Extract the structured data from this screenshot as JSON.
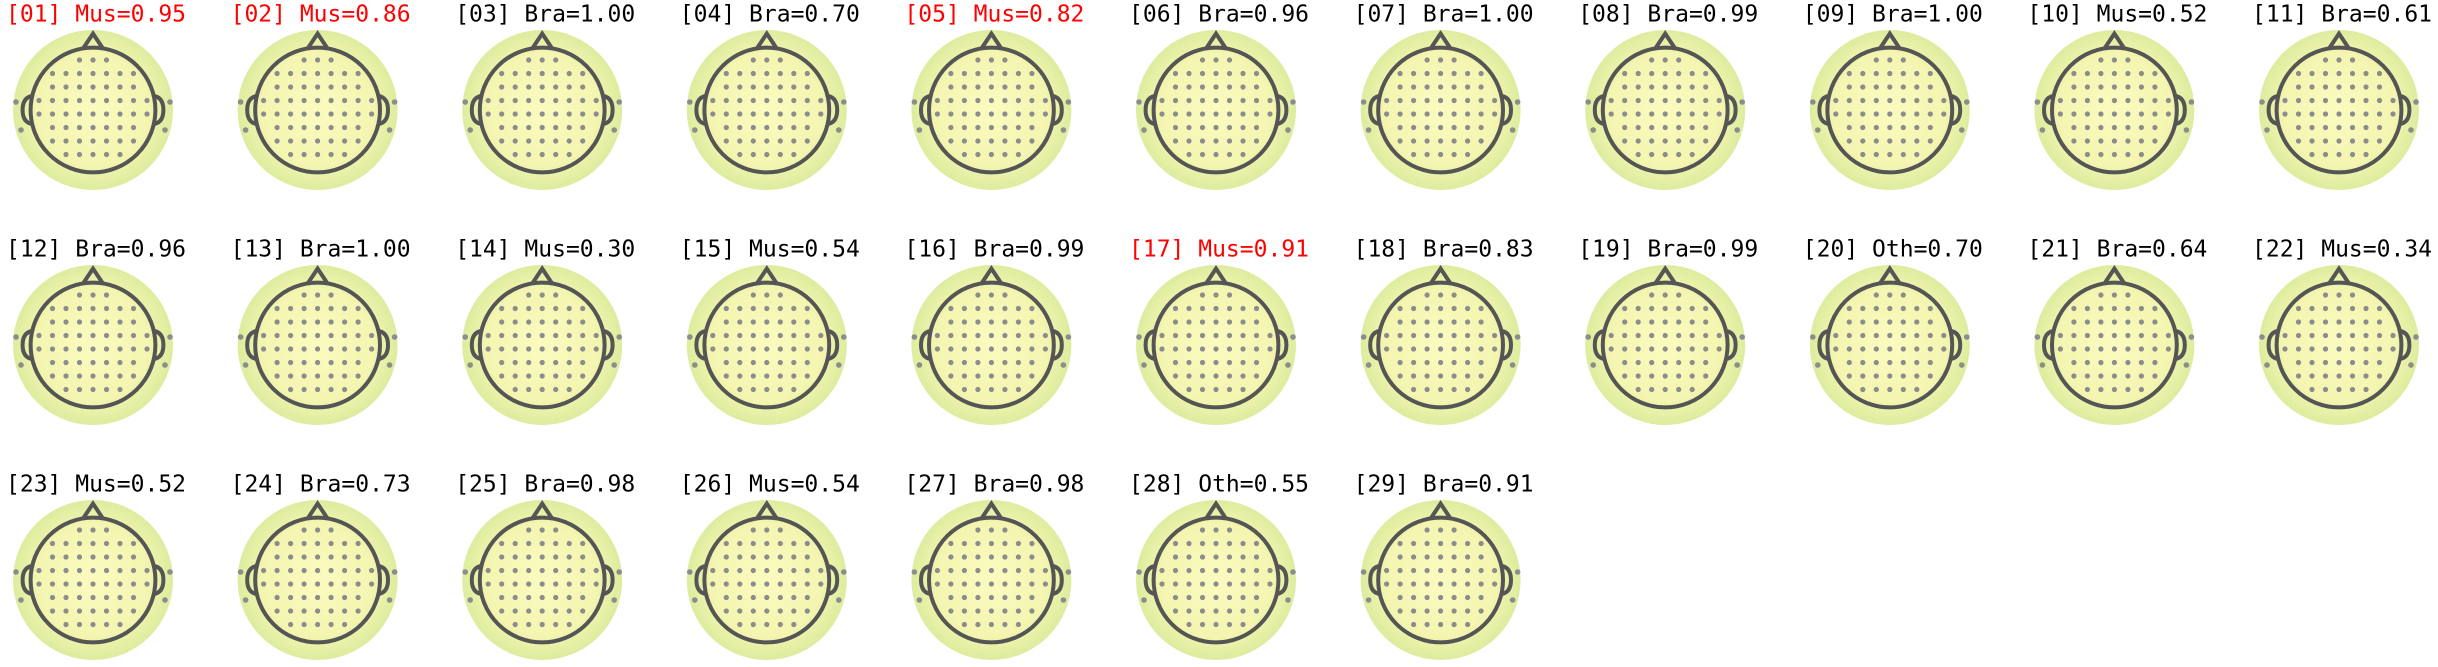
{
  "panels": [
    {
      "title": "[01] Mus=0.95",
      "color": "#ff0000"
    },
    {
      "title": "[02] Mus=0.86",
      "color": "#ff0000"
    },
    {
      "title": "[03] Bra=1.00",
      "color": "#000000"
    },
    {
      "title": "[04] Bra=0.70",
      "color": "#000000"
    },
    {
      "title": "[05] Mus=0.82",
      "color": "#ff0000"
    },
    {
      "title": "[06] Bra=0.96",
      "color": "#000000"
    },
    {
      "title": "[07] Bra=1.00",
      "color": "#000000"
    },
    {
      "title": "[08] Bra=0.99",
      "color": "#000000"
    },
    {
      "title": "[09] Bra=1.00",
      "color": "#000000"
    },
    {
      "title": "[10] Mus=0.52",
      "color": "#000000"
    },
    {
      "title": "[11] Bra=0.61",
      "color": "#000000"
    },
    {
      "title": "[12] Bra=0.96",
      "color": "#000000"
    },
    {
      "title": "[13] Bra=1.00",
      "color": "#000000"
    },
    {
      "title": "[14] Mus=0.30",
      "color": "#000000"
    },
    {
      "title": "[15] Mus=0.54",
      "color": "#000000"
    },
    {
      "title": "[16] Bra=0.99",
      "color": "#000000"
    },
    {
      "title": "[17] Mus=0.91",
      "color": "#ff0000"
    },
    {
      "title": "[18] Bra=0.83",
      "color": "#000000"
    },
    {
      "title": "[19] Bra=0.99",
      "color": "#000000"
    },
    {
      "title": "[20] Oth=0.70",
      "color": "#000000"
    },
    {
      "title": "[21] Bra=0.64",
      "color": "#000000"
    },
    {
      "title": "[22] Mus=0.34",
      "color": "#000000"
    },
    {
      "title": "[23] Mus=0.52",
      "color": "#000000"
    },
    {
      "title": "[24] Bra=0.73",
      "color": "#000000"
    },
    {
      "title": "[25] Bra=0.98",
      "color": "#000000"
    },
    {
      "title": "[26] Mus=0.54",
      "color": "#000000"
    },
    {
      "title": "[27] Bra=0.98",
      "color": "#000000"
    },
    {
      "title": "[28] Oth=0.55",
      "color": "#000000"
    },
    {
      "title": "[29] Bra=0.91",
      "color": "#000000"
    }
  ]
}
